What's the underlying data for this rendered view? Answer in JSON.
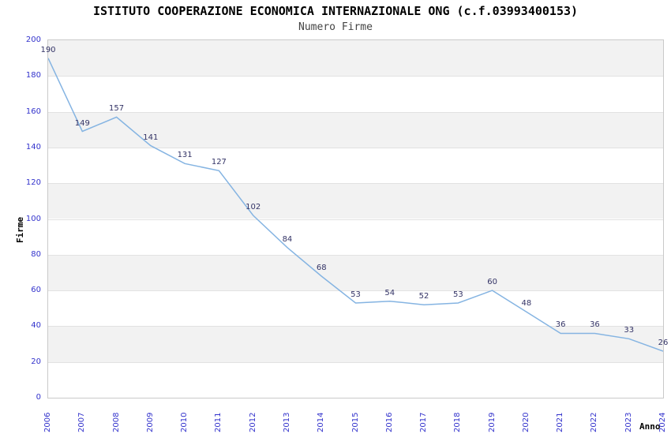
{
  "colors": {
    "title": "#000000",
    "subtitle": "#444444",
    "axis_title": "#000000",
    "tick_label": "#3333cc",
    "data_label": "#333366",
    "line": "#85b4e2",
    "band": "#f2f2f2",
    "gridline": "#e2e2e2",
    "plot_border": "#c9c9c9",
    "background": "#ffffff"
  },
  "chart_data": {
    "type": "line",
    "title": "ISTITUTO COOPERAZIONE ECONOMICA INTERNAZIONALE ONG (c.f.03993400153)",
    "subtitle": "Numero Firme",
    "xlabel": "Anno",
    "ylabel": "Firme",
    "categories": [
      "2006",
      "2007",
      "2008",
      "2009",
      "2010",
      "2011",
      "2012",
      "2013",
      "2014",
      "2015",
      "2016",
      "2017",
      "2018",
      "2019",
      "2020",
      "2021",
      "2022",
      "2023",
      "2024"
    ],
    "values": [
      190,
      149,
      157,
      141,
      131,
      127,
      102,
      84,
      68,
      53,
      54,
      52,
      53,
      60,
      48,
      36,
      36,
      33,
      26
    ],
    "ylim": [
      0,
      200
    ],
    "ytick_step": 20,
    "grid": "horizontal-bands-alternating",
    "legend": "none",
    "point_labels": true
  }
}
